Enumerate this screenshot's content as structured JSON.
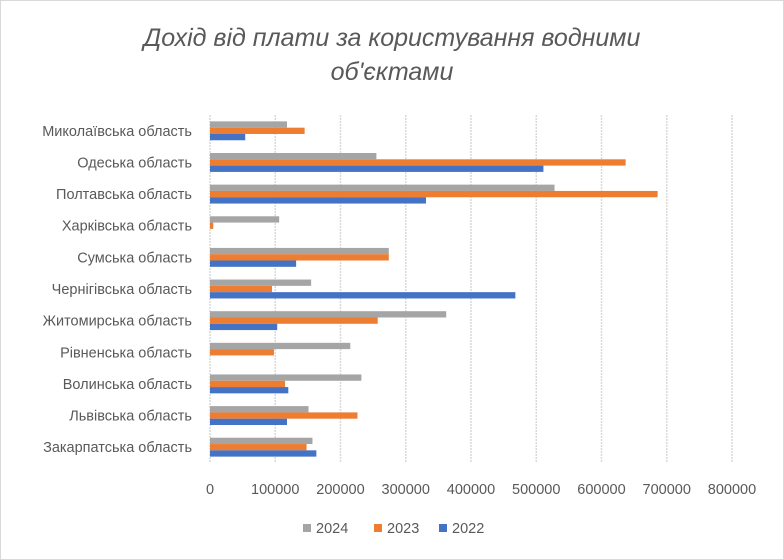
{
  "chart_data": {
    "type": "bar",
    "orientation": "horizontal",
    "title": [
      "Дохід від плати за користування водними",
      "об'єктами"
    ],
    "categories": [
      "Миколаївська область",
      "Одеська область",
      "Полтавська область",
      "Харківська область",
      "Сумська область",
      "Чернігівська область",
      "Житомирська область",
      "Рівненська область",
      "Волинська область",
      "Львівська область",
      "Закарпатська область"
    ],
    "series": [
      {
        "name": "2024",
        "color": "#a5a5a5",
        "values": [
          118000,
          255000,
          528000,
          106000,
          274000,
          155000,
          362000,
          215000,
          232000,
          151000,
          157000
        ]
      },
      {
        "name": "2023",
        "color": "#ed7d31",
        "values": [
          145000,
          637000,
          686000,
          5000,
          274000,
          95000,
          257000,
          98000,
          115000,
          226000,
          148000
        ]
      },
      {
        "name": "2022",
        "color": "#4472c4",
        "values": [
          54000,
          511000,
          331000,
          0,
          132000,
          468000,
          103000,
          0,
          120000,
          118000,
          163000
        ]
      }
    ],
    "xlim": [
      0,
      800000
    ],
    "xticks": [
      "0",
      "100000",
      "200000",
      "300000",
      "400000",
      "500000",
      "600000",
      "700000",
      "800000"
    ],
    "grid": true,
    "legend": "bottom"
  }
}
